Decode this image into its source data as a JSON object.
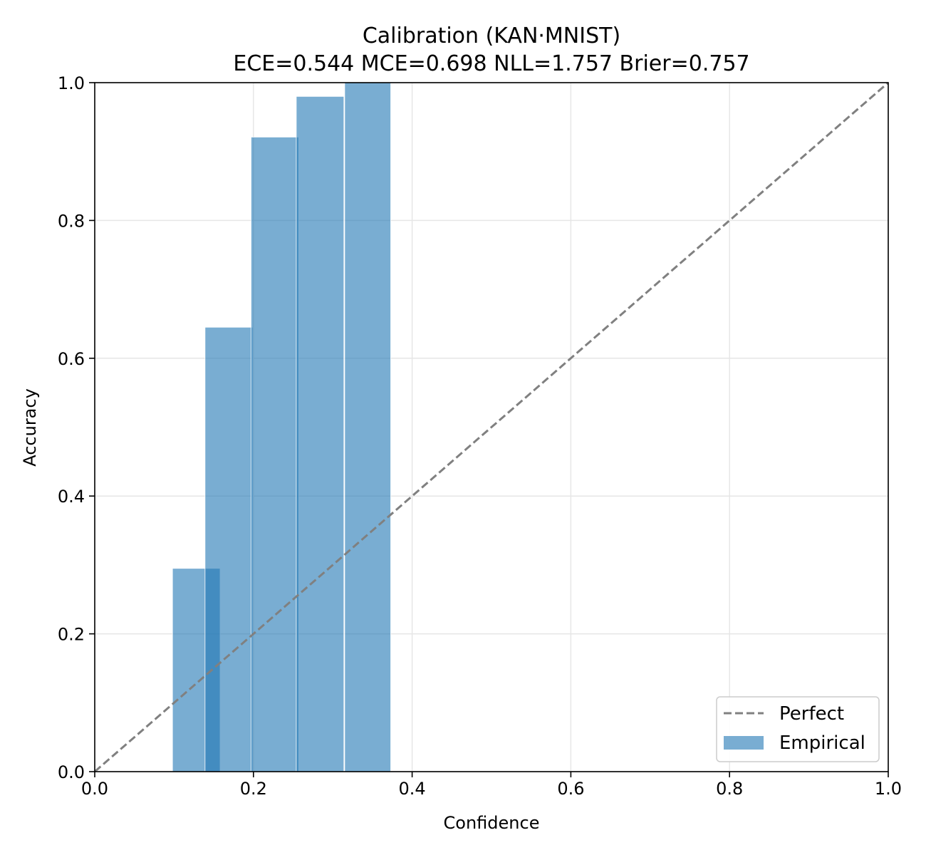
{
  "chart_data": {
    "type": "bar",
    "title": "Calibration (KAN·MNIST)",
    "subtitle": "ECE=0.544  MCE=0.698  NLL=1.757  Brier=0.757",
    "xlabel": "Confidence",
    "ylabel": "Accuracy",
    "xlim": [
      0.0,
      1.0
    ],
    "ylim": [
      0.0,
      1.0
    ],
    "grid": true,
    "xticks": [
      "0.0",
      "0.2",
      "0.4",
      "0.6",
      "0.8",
      "1.0"
    ],
    "yticks": [
      "0.0",
      "0.2",
      "0.4",
      "0.6",
      "0.8",
      "1.0"
    ],
    "legend_position": "bottom-right",
    "series": [
      {
        "name": "Empirical",
        "kind": "bar",
        "color": "#1f77b4",
        "alpha": 0.6,
        "bins": [
          {
            "x_start": 0.098,
            "x_end": 0.158,
            "accuracy": 0.295
          },
          {
            "x_start": 0.139,
            "x_end": 0.199,
            "accuracy": 0.645
          },
          {
            "x_start": 0.197,
            "x_end": 0.257,
            "accuracy": 0.921
          },
          {
            "x_start": 0.254,
            "x_end": 0.314,
            "accuracy": 0.98
          },
          {
            "x_start": 0.315,
            "x_end": 0.373,
            "accuracy": 1.0
          }
        ]
      },
      {
        "name": "Perfect",
        "kind": "line",
        "style": "dashed",
        "color": "#808080",
        "x": [
          0.0,
          1.0
        ],
        "y": [
          0.0,
          1.0
        ]
      }
    ]
  }
}
